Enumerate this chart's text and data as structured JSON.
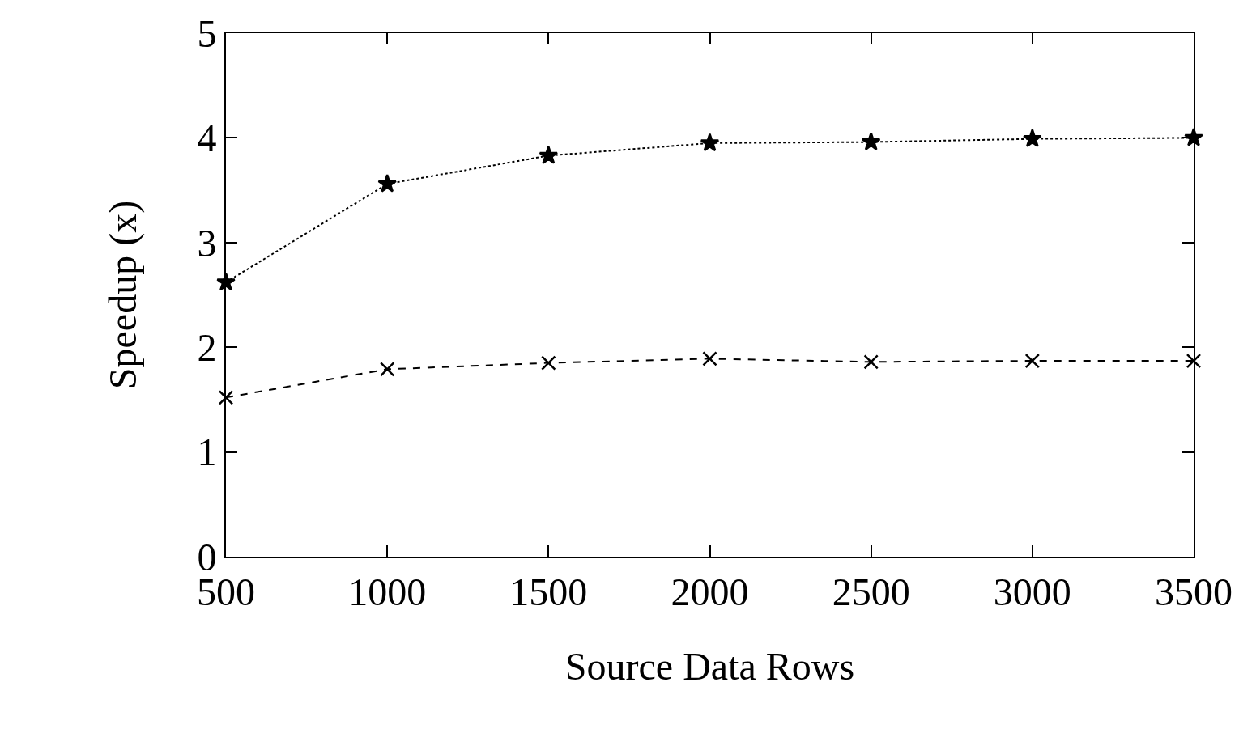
{
  "chart_data": {
    "type": "line",
    "xlabel": "Source Data Rows",
    "ylabel": "Speedup (x)",
    "x": [
      500,
      1000,
      1500,
      2000,
      2500,
      3000,
      3500
    ],
    "series": [
      {
        "color": "#000000",
        "marker": "cross",
        "line_style": "dashed",
        "values": [
          1.52,
          1.79,
          1.85,
          1.89,
          1.86,
          1.87,
          1.87
        ]
      },
      {
        "color": "#000000",
        "marker": "star",
        "line_style": "dotted",
        "values": [
          2.62,
          3.56,
          3.83,
          3.95,
          3.96,
          3.99,
          4.0
        ]
      }
    ],
    "xlim": [
      500,
      3500
    ],
    "xticks": [
      500,
      1000,
      1500,
      2000,
      2500,
      3000,
      3500
    ],
    "ylim": [
      0,
      5
    ],
    "yticks": [
      0,
      1,
      2,
      3,
      4,
      5
    ]
  }
}
